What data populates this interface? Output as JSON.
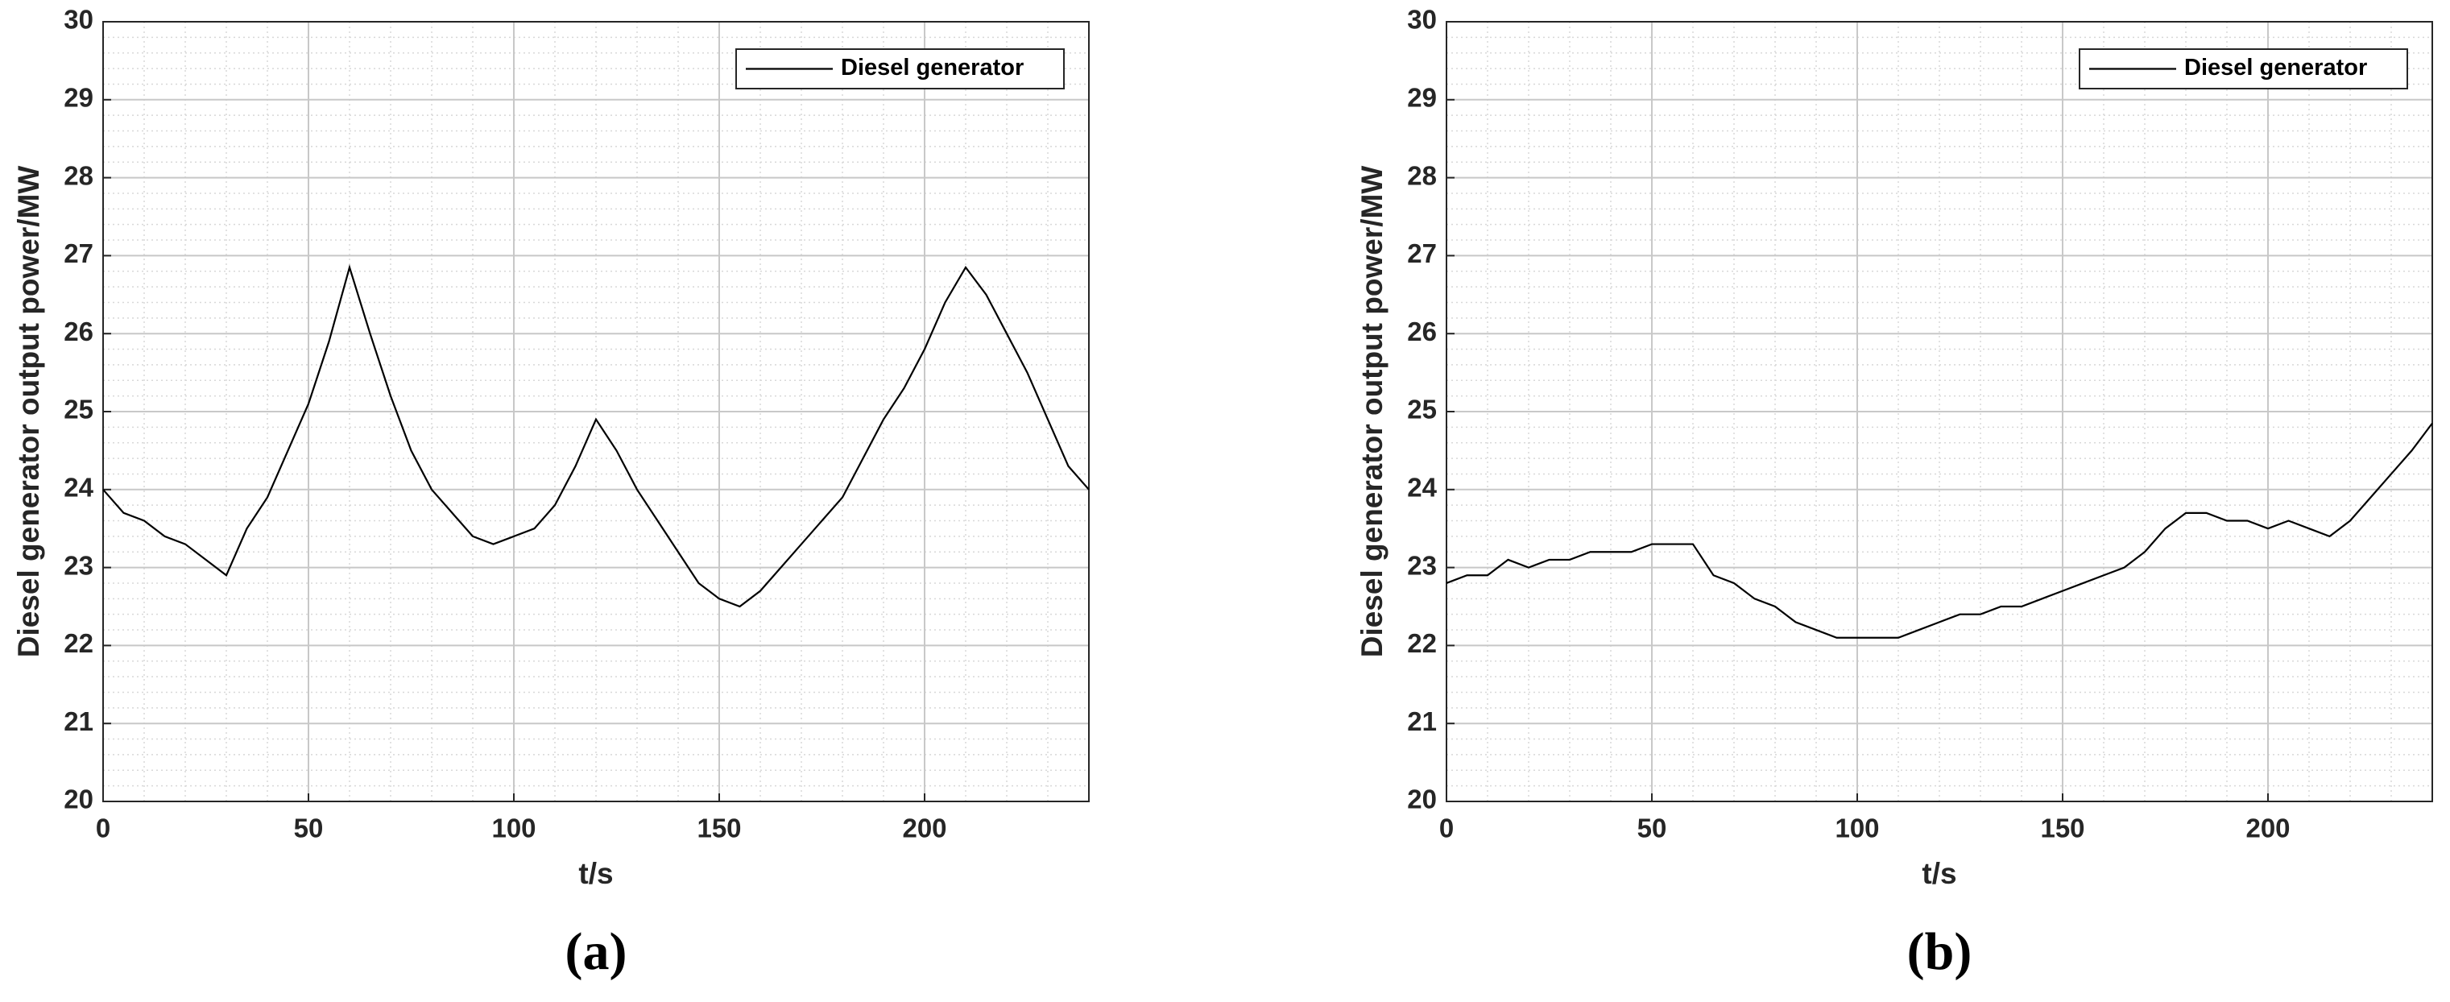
{
  "chart_data": [
    {
      "type": "line",
      "panel_label": "(a)",
      "xlabel": "t/s",
      "ylabel": "Diesel generator output power/MW",
      "x": [
        0,
        5,
        10,
        15,
        20,
        25,
        30,
        35,
        40,
        45,
        50,
        55,
        60,
        65,
        70,
        75,
        80,
        85,
        90,
        95,
        100,
        105,
        110,
        115,
        120,
        125,
        130,
        135,
        140,
        145,
        150,
        155,
        160,
        165,
        170,
        175,
        180,
        185,
        190,
        195,
        200,
        205,
        210,
        215,
        220,
        225,
        230,
        235,
        240
      ],
      "series": [
        {
          "name": "Diesel generator",
          "color": "#000000",
          "values": [
            24.0,
            23.7,
            23.6,
            23.4,
            23.3,
            23.1,
            22.9,
            23.5,
            23.9,
            24.5,
            25.1,
            25.9,
            26.85,
            26.0,
            25.2,
            24.5,
            24.0,
            23.7,
            23.4,
            23.3,
            23.4,
            23.5,
            23.8,
            24.3,
            24.9,
            24.5,
            24.0,
            23.6,
            23.2,
            22.8,
            22.6,
            22.5,
            22.7,
            23.0,
            23.3,
            23.6,
            23.9,
            24.4,
            24.9,
            25.3,
            25.8,
            26.4,
            26.85,
            26.5,
            26.0,
            25.5,
            24.9,
            24.3,
            24.0
          ]
        }
      ],
      "xlim": [
        0,
        240
      ],
      "ylim": [
        20,
        30
      ],
      "xticks": [
        0,
        50,
        100,
        150,
        200
      ],
      "yticks": [
        20,
        21,
        22,
        23,
        24,
        25,
        26,
        27,
        28,
        29,
        30
      ],
      "grid": true,
      "minor_grid": true,
      "legend": "upper right"
    },
    {
      "type": "line",
      "panel_label": "(b)",
      "xlabel": "t/s",
      "ylabel": "Diesel generator output power/MW",
      "x": [
        0,
        5,
        10,
        15,
        20,
        25,
        30,
        35,
        40,
        45,
        50,
        55,
        60,
        65,
        70,
        75,
        80,
        85,
        90,
        95,
        100,
        105,
        110,
        115,
        120,
        125,
        130,
        135,
        140,
        145,
        150,
        155,
        160,
        165,
        170,
        175,
        180,
        185,
        190,
        195,
        200,
        205,
        210,
        215,
        220,
        225,
        230,
        235,
        240
      ],
      "series": [
        {
          "name": "Diesel generator",
          "color": "#000000",
          "values": [
            22.8,
            22.9,
            22.9,
            23.1,
            23.0,
            23.1,
            23.1,
            23.2,
            23.2,
            23.2,
            23.3,
            23.3,
            23.3,
            22.9,
            22.8,
            22.6,
            22.5,
            22.3,
            22.2,
            22.1,
            22.1,
            22.1,
            22.1,
            22.2,
            22.3,
            22.4,
            22.4,
            22.5,
            22.5,
            22.6,
            22.7,
            22.8,
            22.9,
            23.0,
            23.2,
            23.5,
            23.7,
            23.7,
            23.6,
            23.6,
            23.5,
            23.6,
            23.5,
            23.4,
            23.6,
            23.9,
            24.2,
            24.5,
            24.85
          ]
        }
      ],
      "xlim": [
        0,
        240
      ],
      "ylim": [
        20,
        30
      ],
      "xticks": [
        0,
        50,
        100,
        150,
        200
      ],
      "yticks": [
        20,
        21,
        22,
        23,
        24,
        25,
        26,
        27,
        28,
        29,
        30
      ],
      "grid": true,
      "minor_grid": true,
      "legend": "upper right"
    }
  ]
}
